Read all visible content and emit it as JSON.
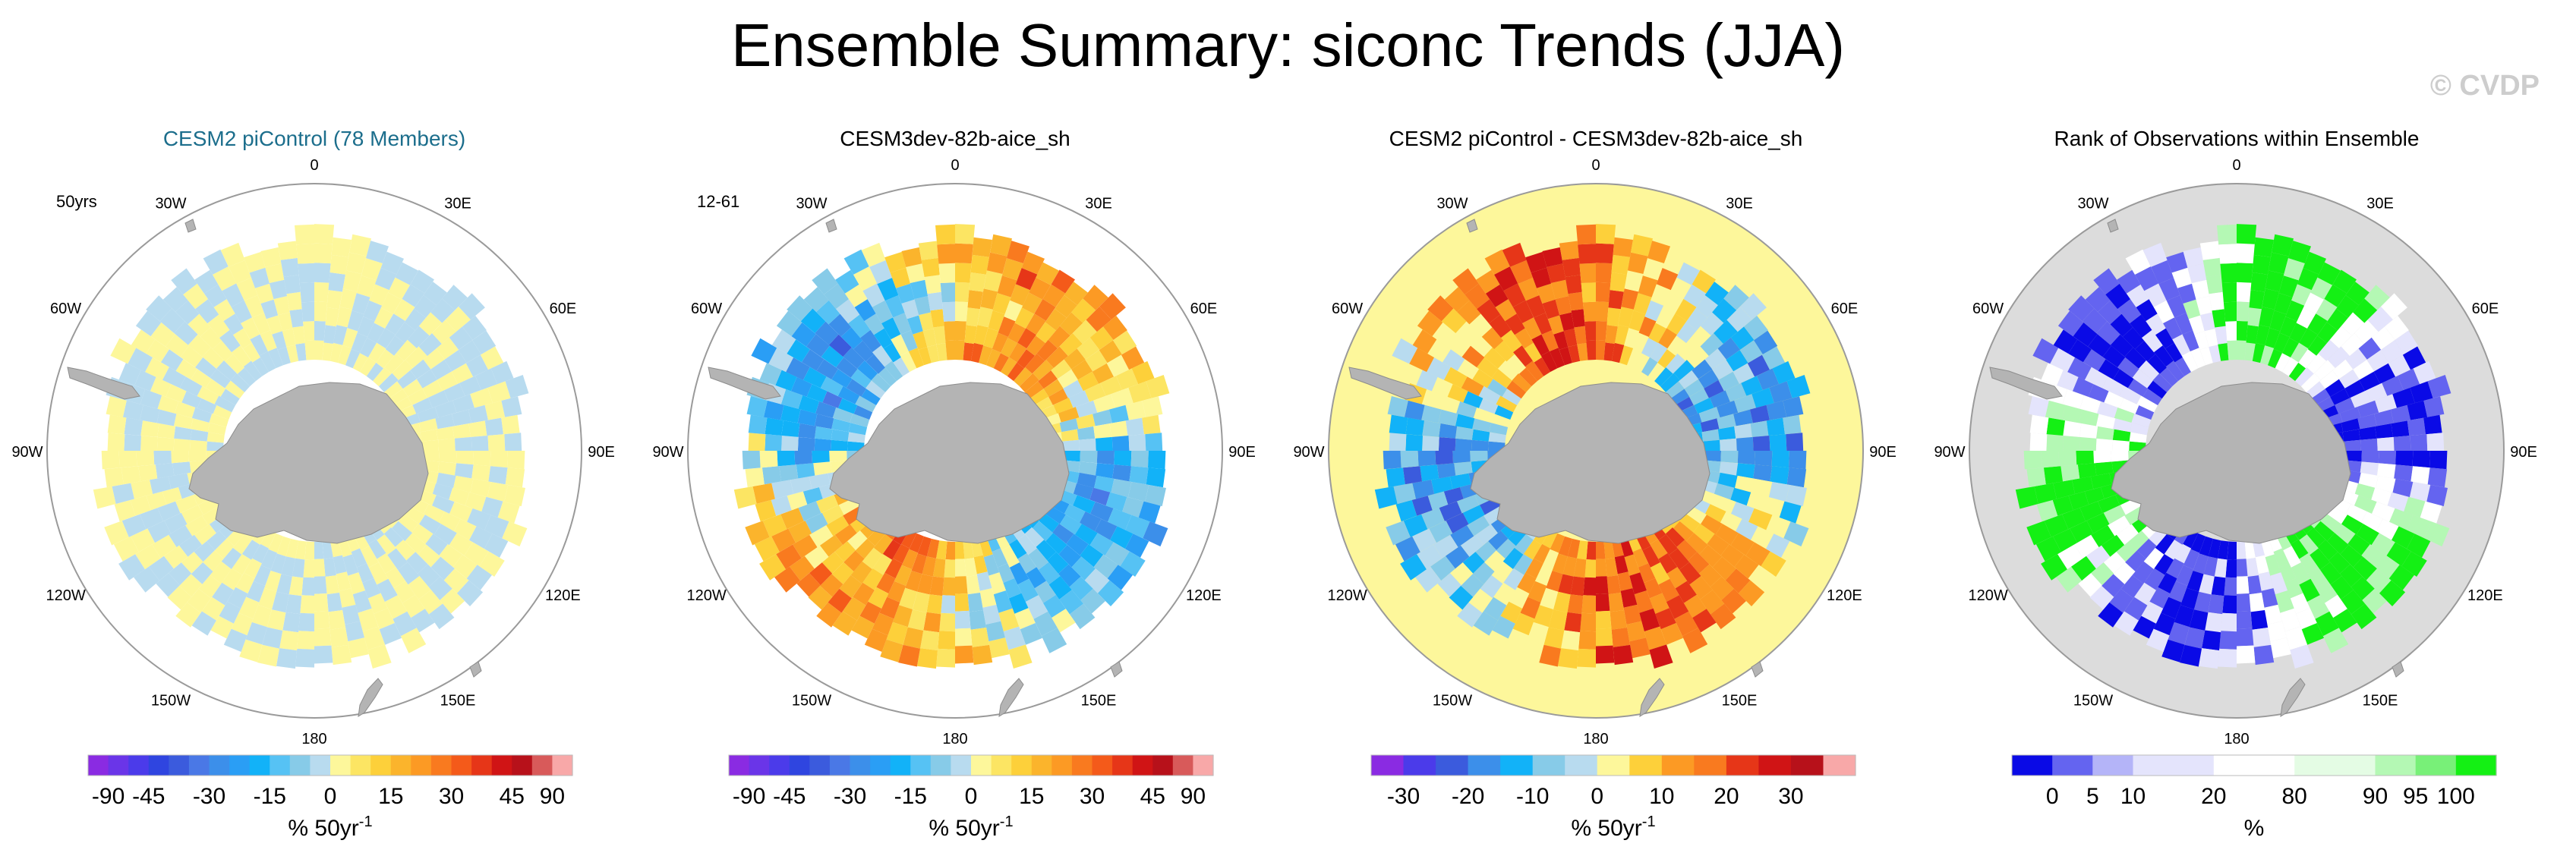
{
  "title": "Ensemble Summary: siconc Trends (JJA)",
  "copyright": "© CVDP",
  "colors": {
    "land": "#b4b4b4",
    "panel_border": "#9a9a9a",
    "outside_ice": "#fdf79b",
    "rank_background": "#dcdcdc"
  },
  "chart_data": [
    {
      "type": "heatmap",
      "projection": "south polar stereographic",
      "title": "CESM2 piControl (78 Members)",
      "title_color": "#1c6e8c",
      "corner_label": "50yrs",
      "lon_labels": [
        "0",
        "30E",
        "60E",
        "90E",
        "120E",
        "150E",
        "180",
        "150W",
        "120W",
        "90W",
        "60W",
        "30W"
      ],
      "pattern": "weak",
      "colorbar": {
        "colors": [
          "#8a2be2",
          "#6a35e8",
          "#4b3bea",
          "#2f45e0",
          "#3b5bdd",
          "#4a78e6",
          "#3c8fea",
          "#2a9ef5",
          "#12b2f8",
          "#56c2f4",
          "#87cbe8",
          "#b8dbef",
          "#fdf79b",
          "#fce563",
          "#fdd03a",
          "#fbb42c",
          "#fc9a24",
          "#f97a1f",
          "#f45a1a",
          "#e63618",
          "#d01415",
          "#b7111a",
          "#d85a5a",
          "#f8a8a8"
        ],
        "tick_labels": [
          "-90",
          "-45",
          "-30",
          "-15",
          "0",
          "15",
          "30",
          "45",
          "90"
        ],
        "tick_boundaries": [
          1,
          3,
          6,
          9,
          12,
          15,
          18,
          21,
          23
        ],
        "units_text": "% 50yr",
        "units_superscript": "-1"
      }
    },
    {
      "type": "heatmap",
      "projection": "south polar stereographic",
      "title": "CESM3dev-82b-aice_sh",
      "title_color": "#000000",
      "corner_label": "12-61",
      "lon_labels": [
        "0",
        "30E",
        "60E",
        "90E",
        "120E",
        "150E",
        "180",
        "150W",
        "120W",
        "90W",
        "60W",
        "30W"
      ],
      "pattern": "trend",
      "colorbar": {
        "colors": [
          "#8a2be2",
          "#6a35e8",
          "#4b3bea",
          "#2f45e0",
          "#3b5bdd",
          "#4a78e6",
          "#3c8fea",
          "#2a9ef5",
          "#12b2f8",
          "#56c2f4",
          "#87cbe8",
          "#b8dbef",
          "#fdf79b",
          "#fce563",
          "#fdd03a",
          "#fbb42c",
          "#fc9a24",
          "#f97a1f",
          "#f45a1a",
          "#e63618",
          "#d01415",
          "#b7111a",
          "#d85a5a",
          "#f8a8a8"
        ],
        "tick_labels": [
          "-90",
          "-45",
          "-30",
          "-15",
          "0",
          "15",
          "30",
          "45",
          "90"
        ],
        "tick_boundaries": [
          1,
          3,
          6,
          9,
          12,
          15,
          18,
          21,
          23
        ],
        "units_text": "% 50yr",
        "units_superscript": "-1"
      }
    },
    {
      "type": "heatmap",
      "projection": "south polar stereographic",
      "title": "CESM2 piControl - CESM3dev-82b-aice_sh",
      "title_color": "#000000",
      "corner_label": "",
      "lon_labels": [
        "0",
        "30E",
        "60E",
        "90E",
        "120E",
        "150E",
        "180",
        "150W",
        "120W",
        "90W",
        "60W",
        "30W"
      ],
      "pattern": "difference",
      "colorbar": {
        "colors": [
          "#8a2be2",
          "#4b3bea",
          "#3b5bdd",
          "#3c8fea",
          "#12b2f8",
          "#87cbe8",
          "#b8dbef",
          "#fdf79b",
          "#fdd03a",
          "#fc9a24",
          "#f97a1f",
          "#e63618",
          "#d01415",
          "#b7111a",
          "#f8a8a8"
        ],
        "tick_labels": [
          "-30",
          "-20",
          "-10",
          "0",
          "10",
          "20",
          "30"
        ],
        "tick_boundaries": [
          1,
          3,
          5,
          7,
          9,
          11,
          13
        ],
        "units_text": "% 50yr",
        "units_superscript": "-1"
      }
    },
    {
      "type": "heatmap",
      "projection": "south polar stereographic",
      "title": "Rank of Observations within Ensemble",
      "title_color": "#000000",
      "corner_label": "",
      "lon_labels": [
        "0",
        "30E",
        "60E",
        "90E",
        "120E",
        "150E",
        "180",
        "150W",
        "120W",
        "90W",
        "60W",
        "30W"
      ],
      "pattern": "rank",
      "colorbar": {
        "colors": [
          "#0a0ae6",
          "#6464f0",
          "#b4b4f8",
          "#e4e4fc",
          "#e4e4fc",
          "#ffffff",
          "#ffffff",
          "#e4fce4",
          "#e4fce4",
          "#b4f8b4",
          "#78f078",
          "#14f014"
        ],
        "tick_labels": [
          "0",
          "5",
          "10",
          "20",
          "80",
          "90",
          "95",
          "100"
        ],
        "tick_boundaries": [
          1,
          2,
          3,
          5,
          7,
          9,
          10,
          11
        ],
        "units_text": "%",
        "units_superscript": ""
      }
    }
  ]
}
